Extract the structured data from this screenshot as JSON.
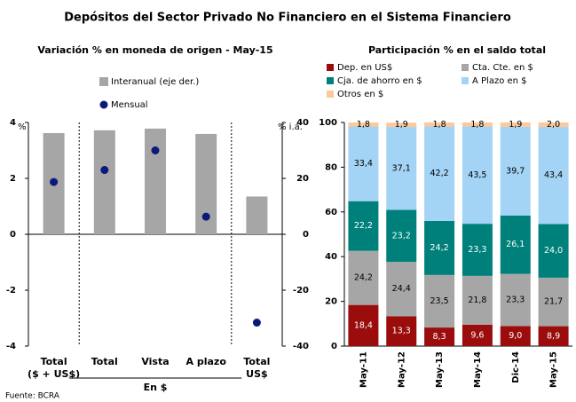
{
  "title": "Depósitos del Sector Privado No Financiero en el Sistema Financiero",
  "source": "Fuente: BCRA",
  "chart_data": [
    {
      "type": "bar",
      "title": "Variación % en moneda de origen - May-15",
      "categories": [
        [
          "Total",
          "($ + US$)"
        ],
        [
          "Total"
        ],
        [
          "Vista"
        ],
        [
          "A plazo"
        ],
        [
          "Total",
          "US$"
        ]
      ],
      "annotations": [
        "En $"
      ],
      "ylabel": "%",
      "y2label": "% i.a.",
      "ylim": [
        -4,
        4
      ],
      "yticks": [
        -4,
        -2,
        0,
        2,
        4
      ],
      "y2lim": [
        -40,
        40
      ],
      "y2ticks": [
        -40,
        -20,
        0,
        20,
        40
      ],
      "series": [
        {
          "name": "Interanual (eje der.)",
          "type": "bar",
          "axis": "y2",
          "color": "#a6a6a6",
          "values": [
            36.2,
            37.2,
            37.8,
            35.9,
            13.5
          ]
        },
        {
          "name": "Mensual",
          "type": "scatter",
          "color": "#0a1a7a",
          "values": [
            1.87,
            2.3,
            3.0,
            0.63,
            -3.16
          ]
        }
      ]
    },
    {
      "type": "stacked_bar",
      "title": "Participación % en el saldo total",
      "categories": [
        "May-11",
        "May-12",
        "May-13",
        "May-14",
        "Dic-14",
        "May-15"
      ],
      "ylim": [
        0,
        100
      ],
      "yticks": [
        0,
        20,
        40,
        60,
        80,
        100
      ],
      "legend": "top",
      "series": [
        {
          "name": "Dep. en US$",
          "color": "#9b0d0d",
          "values": [
            18.4,
            13.3,
            8.3,
            9.6,
            9.0,
            8.9
          ],
          "value_labels": [
            "18,4",
            "13,3",
            "8,3",
            "9,6",
            "9,0",
            "8,9"
          ]
        },
        {
          "name": "Cta. Cte. en $",
          "color": "#a6a6a6",
          "values": [
            24.2,
            24.4,
            23.5,
            21.8,
            23.3,
            21.7
          ],
          "value_labels": [
            "24,2",
            "24,4",
            "23,5",
            "21,8",
            "23,3",
            "21,7"
          ]
        },
        {
          "name": "Cja. de ahorro en $",
          "color": "#00807a",
          "values": [
            22.2,
            23.2,
            24.2,
            23.3,
            26.1,
            24.0
          ],
          "value_labels": [
            "22,2",
            "23,2",
            "24,2",
            "23,3",
            "26,1",
            "24,0"
          ]
        },
        {
          "name": "A Plazo en $",
          "color": "#a3d4f5",
          "values": [
            33.4,
            37.1,
            42.2,
            43.5,
            39.7,
            43.4
          ],
          "value_labels": [
            "33,4",
            "37,1",
            "42,2",
            "43,5",
            "39,7",
            "43,4"
          ]
        },
        {
          "name": "Otros en $",
          "color": "#fcc99a",
          "values": [
            1.8,
            1.9,
            1.8,
            1.8,
            1.9,
            2.0
          ],
          "value_labels": [
            "1,8",
            "1,9",
            "1,8",
            "1,8",
            "1,9",
            "2,0"
          ]
        }
      ]
    }
  ]
}
